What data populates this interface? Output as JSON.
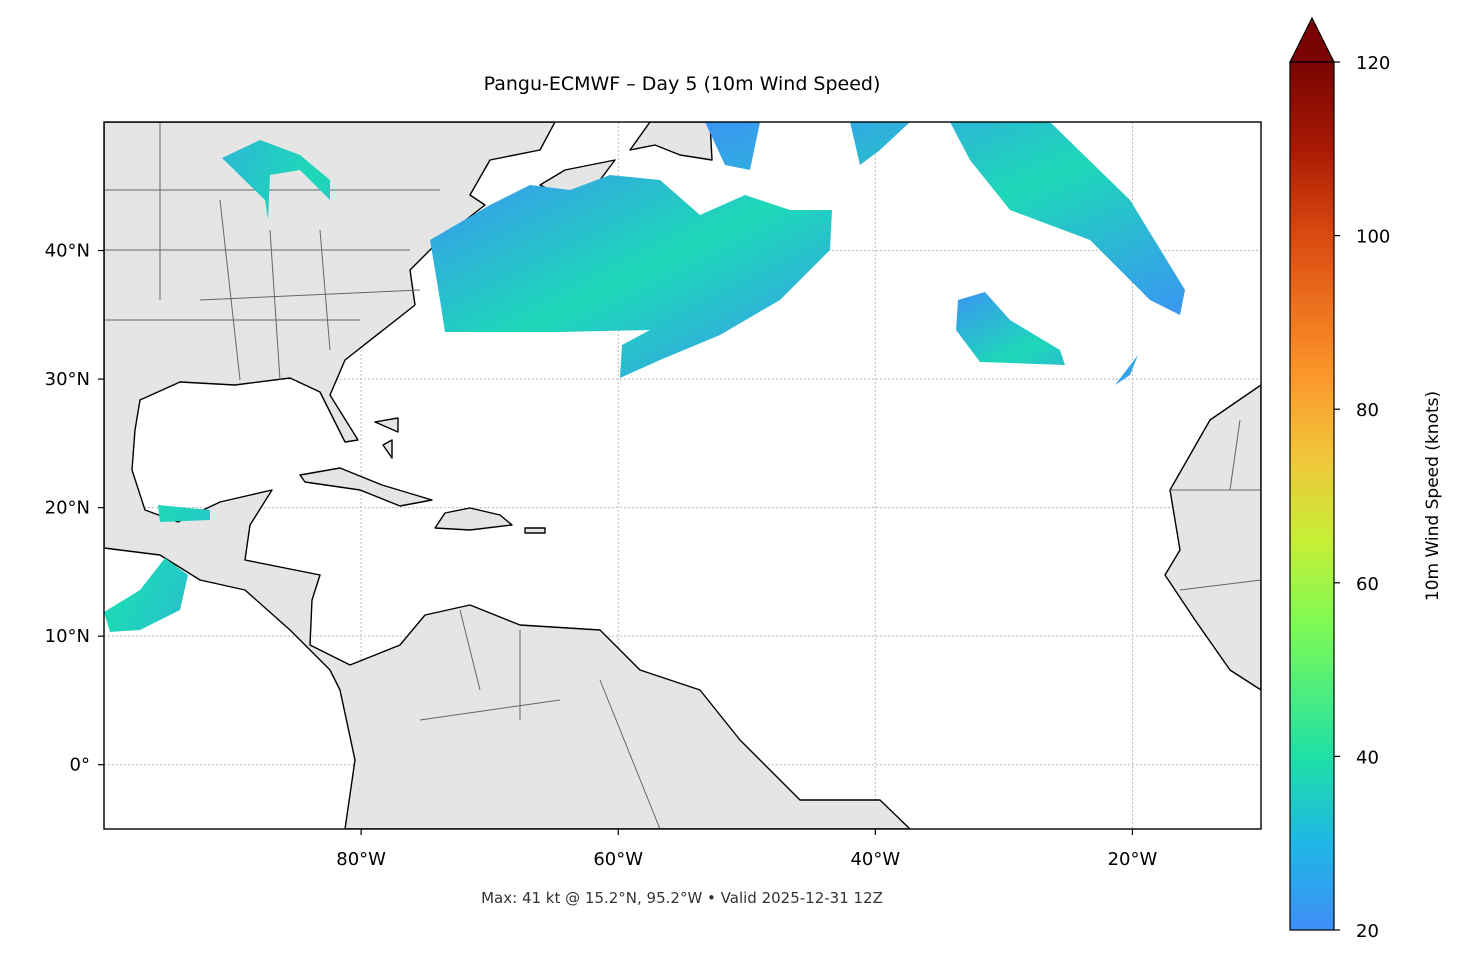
{
  "map": {
    "title": "Pangu-ECMWF – Day 5 (10m Wind Speed)",
    "xlim": [
      -100,
      -10
    ],
    "ylim": [
      -5,
      50
    ],
    "xticks": [
      {
        "value": -80,
        "label": "80°W"
      },
      {
        "value": -60,
        "label": "60°W"
      },
      {
        "value": -40,
        "label": "40°W"
      },
      {
        "value": -20,
        "label": "20°W"
      }
    ],
    "yticks": [
      {
        "value": 0,
        "label": "0°"
      },
      {
        "value": 10,
        "label": "10°N"
      },
      {
        "value": 20,
        "label": "20°N"
      },
      {
        "value": 30,
        "label": "30°N"
      },
      {
        "value": 40,
        "label": "40°N"
      }
    ],
    "grid": true,
    "footnote": "Max: 41 kt @ 15.2°N, 95.2°W • Valid 2025-12-31 12Z",
    "colorbar": {
      "label": "10m Wind Speed (knots)",
      "lim": [
        20,
        120
      ],
      "ticks": [
        20,
        40,
        60,
        80,
        100,
        120
      ]
    }
  }
}
